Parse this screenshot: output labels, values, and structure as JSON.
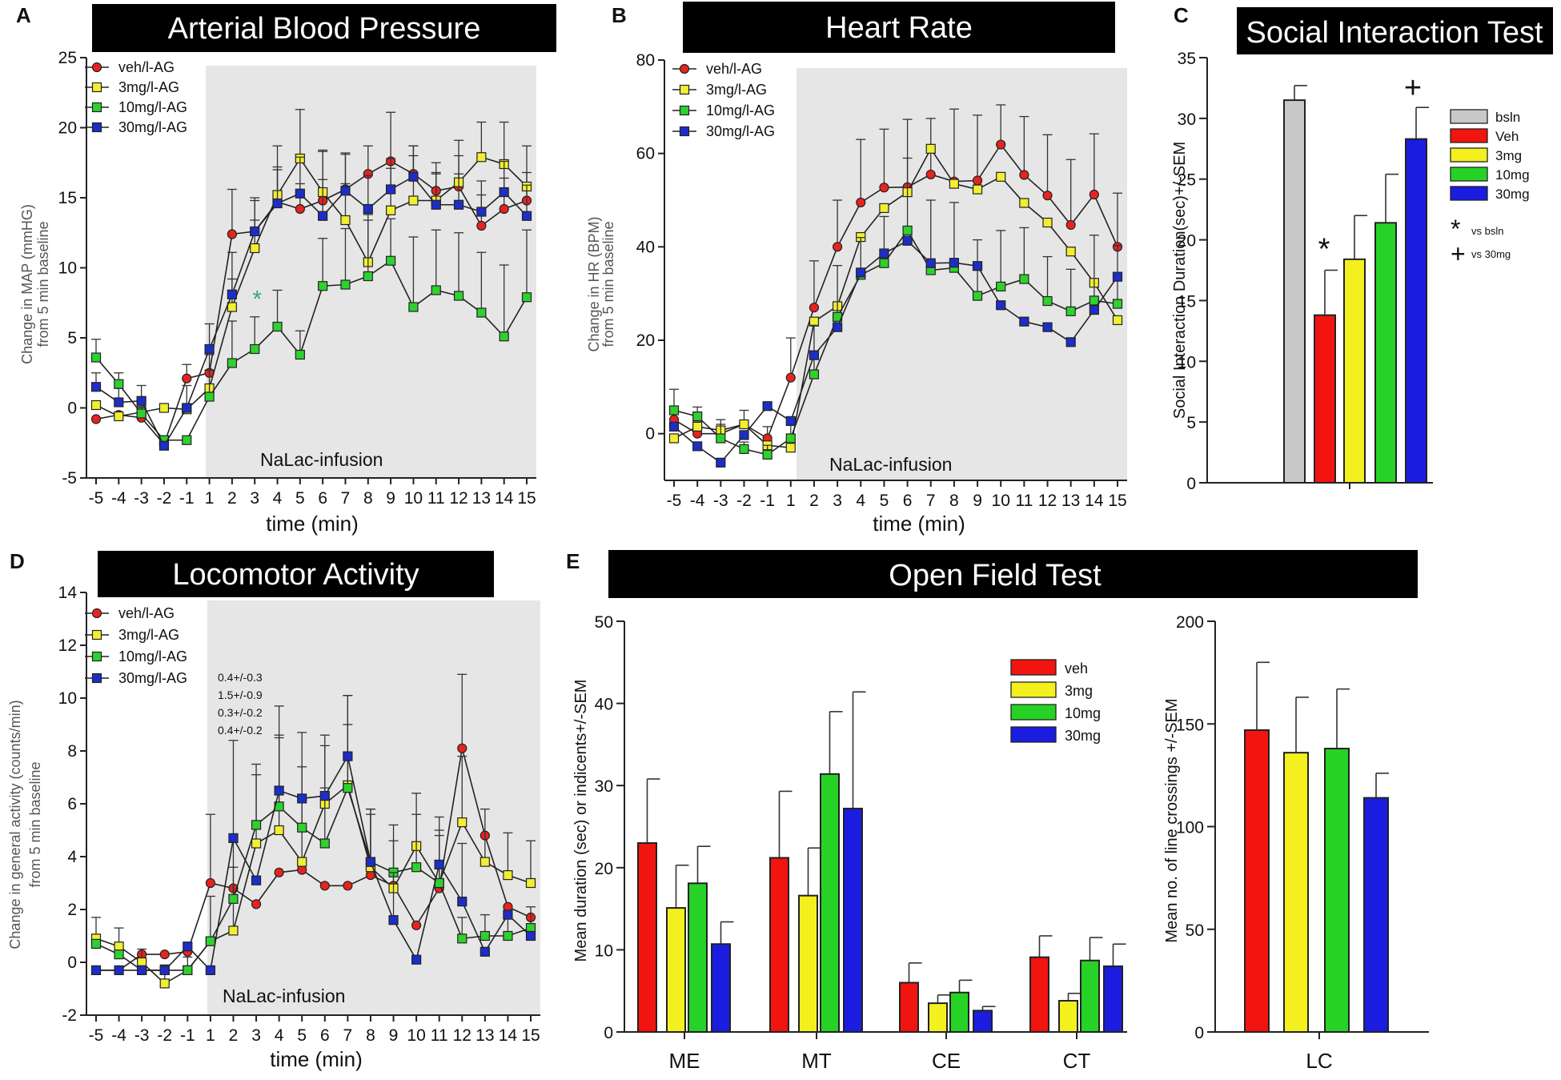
{
  "chart_data": [
    {
      "id": "A",
      "type": "line",
      "panel_label": "A",
      "title": "Arterial Blood Pressure",
      "xlabel": "time (min)",
      "ylabel": [
        "Change in MAP (mmHG)",
        "from 5 min baseline"
      ],
      "x": [
        "-5",
        "-4",
        "-3",
        "-2",
        "-1",
        "1",
        "2",
        "3",
        "4",
        "5",
        "6",
        "7",
        "8",
        "9",
        "10",
        "11",
        "12",
        "13",
        "14",
        "15"
      ],
      "ylim": [
        -5,
        25
      ],
      "yticks": [
        "-5",
        "0",
        "5",
        "10",
        "15",
        "20",
        "25"
      ],
      "shade_label": "NaLac-infusion",
      "annotation": "*",
      "legend": [
        "veh/l-AG",
        "3mg/l-AG",
        "10mg/l-AG",
        "30mg/l-AG"
      ],
      "series": [
        {
          "name": "veh/l-AG",
          "color": "#e8231f",
          "marker": "circle",
          "values": [
            -0.8,
            -0.5,
            -0.7,
            -2.6,
            2.1,
            2.5,
            12.4,
            12.6,
            14.7,
            14.2,
            14.8,
            15.6,
            16.7,
            17.6,
            16.7,
            15.5,
            15.8,
            13,
            14.2,
            14.8
          ],
          "errors": [
            0,
            0,
            0,
            0,
            1,
            1.3,
            3.2,
            2.2,
            2.3,
            1.8,
            3.5,
            2.6,
            2,
            3.5,
            2,
            2,
            2.2,
            2.2,
            2.2,
            2
          ]
        },
        {
          "name": "3mg/l-AG",
          "color": "#f2ee32",
          "marker": "square",
          "values": [
            0.2,
            -0.6,
            -0.3,
            0,
            -0.1,
            1.4,
            7.2,
            11.4,
            15.2,
            17.8,
            15.4,
            13.4,
            10.4,
            14.1,
            14.8,
            14.8,
            16.1,
            17.9,
            17.4,
            15.8
          ],
          "errors": [
            0,
            0,
            0,
            0,
            0,
            1.3,
            2,
            2,
            3.5,
            3.5,
            3,
            2.6,
            3,
            3,
            3.2,
            2,
            3,
            2.5,
            3,
            2.9
          ]
        },
        {
          "name": "10mg/l-AG",
          "color": "#2ed12e",
          "marker": "square",
          "values": [
            3.6,
            1.7,
            -0.4,
            -2.3,
            -2.3,
            0.8,
            3.2,
            4.2,
            5.8,
            3.8,
            8.7,
            8.8,
            9.4,
            10.5,
            7.2,
            8.4,
            8,
            6.8,
            5.1,
            7.9
          ],
          "errors": [
            1.3,
            0.8,
            0.5,
            0,
            0,
            1.9,
            3,
            2.3,
            2.6,
            1.7,
            3.4,
            4,
            4.4,
            3,
            5,
            4.3,
            4.5,
            4.3,
            5.1,
            4.8
          ]
        },
        {
          "name": "30mg/l-AG",
          "color": "#1d2ec6",
          "marker": "square",
          "values": [
            1.5,
            0.4,
            0.5,
            -2.7,
            0,
            4.2,
            8.1,
            12.6,
            14.6,
            15.3,
            13.7,
            15.5,
            14.2,
            15.6,
            16.5,
            14.5,
            14.5,
            14,
            15.4,
            13.7
          ],
          "errors": [
            1,
            1,
            1.1,
            0,
            1.6,
            1.8,
            3,
            2.4,
            2.6,
            2.6,
            2.6,
            2.6,
            2.4,
            2.2,
            2.2,
            2.2,
            2.2,
            2.2,
            2.2,
            2.2
          ]
        }
      ]
    },
    {
      "id": "B",
      "type": "line",
      "panel_label": "B",
      "title": "Heart Rate",
      "xlabel": "time (min)",
      "ylabel": [
        "Change in HR (BPM)",
        "from 5 min baseline"
      ],
      "x": [
        "-5",
        "-4",
        "-3",
        "-2",
        "-1",
        "1",
        "2",
        "3",
        "4",
        "5",
        "6",
        "7",
        "8",
        "9",
        "10",
        "11",
        "12",
        "13",
        "14",
        "15"
      ],
      "ylim": [
        -10,
        80
      ],
      "yticks": [
        "0",
        "20",
        "40",
        "60",
        "80"
      ],
      "shade_label": "NaLac-infusion",
      "legend": [
        "veh/l-AG",
        "3mg/l-AG",
        "10mg/l-AG",
        "30mg/l-AG"
      ],
      "series": [
        {
          "name": "veh/l-AG",
          "color": "#e8231f",
          "marker": "circle",
          "values": [
            3,
            0,
            0,
            2,
            -1,
            12,
            27,
            40,
            49.5,
            52.7,
            52.8,
            55.5,
            54,
            54.2,
            61.9,
            55.4,
            51,
            44.7,
            51.2,
            40
          ],
          "errors": [
            2.5,
            2.5,
            3,
            3,
            2.5,
            8.5,
            10,
            10,
            13.5,
            12.5,
            14.5,
            12,
            15.5,
            14,
            8.5,
            12.5,
            13,
            14,
            13,
            11.5
          ]
        },
        {
          "name": "3mg/l-AG",
          "color": "#f2ee32",
          "marker": "square",
          "values": [
            -1,
            1.5,
            0.7,
            2,
            -2.5,
            -3,
            24,
            27.3,
            42.1,
            48.3,
            51.7,
            61,
            53.5,
            52.3,
            55,
            49.4,
            45.2,
            39,
            32.3,
            24.3
          ]
        },
        {
          "name": "10mg/l-AG",
          "color": "#2ed12e",
          "marker": "square",
          "values": [
            5,
            3.7,
            -1,
            -3.3,
            -4.5,
            -1,
            12.7,
            25,
            34,
            36.5,
            43.5,
            35,
            35.5,
            29.5,
            31.5,
            33.1,
            28.4,
            26.2,
            28.5,
            27.8
          ],
          "errors": [
            4.5,
            2,
            3,
            1.5,
            2,
            3,
            10.5,
            11,
            8,
            10,
            15.5,
            15,
            14,
            12,
            12,
            11,
            9.5,
            9,
            14,
            12.5
          ]
        },
        {
          "name": "30mg/l-AG",
          "color": "#1d2ec6",
          "marker": "square",
          "values": [
            1.5,
            -2.7,
            -6.2,
            -0.3,
            5.9,
            2.7,
            16.8,
            22.8,
            34.5,
            38.6,
            41.3,
            36.5,
            36.6,
            35.9,
            27.5,
            24,
            22.8,
            19.6,
            26.5,
            33.6
          ]
        }
      ]
    },
    {
      "id": "C",
      "type": "bar",
      "panel_label": "C",
      "title": "Social Interaction Test",
      "ylabel": "Social Interaction Duration(sec)+/-SEM",
      "categories": [
        "bsln",
        "Veh",
        "3mg",
        "10mg",
        "30mg"
      ],
      "values": [
        31.5,
        13.8,
        18.4,
        21.4,
        28.3
      ],
      "errors": [
        1.2,
        3.7,
        3.6,
        4,
        2.6
      ],
      "colors": [
        "#c8c8c8",
        "#f2140f",
        "#f4f01e",
        "#27d227",
        "#1a1de0"
      ],
      "ylim": [
        0,
        35
      ],
      "yticks": [
        "0",
        "5",
        "10",
        "15",
        "20",
        "25",
        "30",
        "35"
      ],
      "markers": [
        {
          "category": "Veh",
          "symbol": "*"
        },
        {
          "category": "30mg",
          "symbol": "+"
        }
      ],
      "legend_notes": [
        {
          "symbol": "*",
          "text": "vs bsln"
        },
        {
          "symbol": "+",
          "text": "vs 30mg"
        }
      ]
    },
    {
      "id": "D",
      "type": "line",
      "panel_label": "D",
      "title": "Locomotor Activity",
      "xlabel": "time (min)",
      "ylabel": [
        "Change in general activity (counts/min)",
        "from 5 min baseline"
      ],
      "x": [
        "-5",
        "-4",
        "-3",
        "-2",
        "-1",
        "1",
        "2",
        "3",
        "4",
        "5",
        "6",
        "7",
        "8",
        "9",
        "10",
        "11",
        "12",
        "13",
        "14",
        "15"
      ],
      "ylim": [
        -2,
        14
      ],
      "yticks": [
        "-2",
        "0",
        "2",
        "4",
        "6",
        "8",
        "10",
        "12",
        "14"
      ],
      "shade_label": "NaLac-infusion",
      "legend": [
        "veh/l-AG",
        "3mg/l-AG",
        "10mg/l-AG",
        "30mg/l-AG"
      ],
      "baseline_notes": [
        "0.4+/-0.3",
        "1.5+/-0.9",
        "0.3+/-0.2",
        "0.4+/-0.2"
      ],
      "series": [
        {
          "name": "veh/l-AG",
          "color": "#e8231f",
          "marker": "circle",
          "values": [
            -0.3,
            -0.3,
            0.3,
            0.3,
            0.4,
            3,
            2.8,
            2.2,
            3.4,
            3.5,
            2.9,
            2.9,
            3.3,
            2.9,
            1.4,
            2.8,
            8.1,
            4.8,
            2.1,
            1.7
          ],
          "errors": [
            0,
            0,
            0,
            0,
            0,
            2.6,
            0,
            0,
            0,
            0,
            0,
            0,
            0,
            0,
            0,
            0,
            2.8,
            0,
            0,
            0
          ]
        },
        {
          "name": "3mg/l-AG",
          "color": "#f2ee32",
          "marker": "square",
          "values": [
            0.9,
            0.6,
            0,
            -0.8,
            -0.3,
            0.8,
            1.2,
            4.5,
            5,
            3.8,
            6,
            6.7,
            3.6,
            2.8,
            4.4,
            3,
            5.3,
            3.8,
            3.3,
            3
          ],
          "errors": [
            0.8,
            0.7,
            0.5,
            0.7,
            0.5,
            1.7,
            2.4,
            2.6,
            3.6,
            2.4,
            2.2,
            3.4,
            2,
            1.8,
            2,
            2,
            2.5,
            2,
            1.6,
            1.6
          ]
        },
        {
          "name": "10mg/l-AG",
          "color": "#2ed12e",
          "marker": "square",
          "values": [
            0.7,
            0.3,
            -0.3,
            -0.3,
            -0.3,
            0.8,
            2.4,
            5.2,
            5.9,
            5.1,
            4.5,
            6.6,
            3.8,
            3.4,
            3.6,
            3,
            0.9,
            1,
            1,
            1.3
          ],
          "errors": [
            0,
            0,
            0,
            0,
            0,
            0,
            2.2,
            2.3,
            2.6,
            2.3,
            2.1,
            2.4,
            2,
            1.8,
            2,
            1.8,
            0.8,
            0.8,
            0.8,
            0.8
          ]
        },
        {
          "name": "30mg/l-AG",
          "color": "#1d2ec6",
          "marker": "square",
          "values": [
            -0.3,
            -0.3,
            -0.3,
            -0.3,
            0.6,
            -0.3,
            4.7,
            3.1,
            6.5,
            6.2,
            6.3,
            7.8,
            3.8,
            1.6,
            0.1,
            3.7,
            2.3,
            0.4,
            1.8,
            1
          ],
          "errors": [
            0,
            0,
            0,
            0,
            0,
            0,
            3.7,
            0,
            3.2,
            2.5,
            2.3,
            2.3,
            2,
            1.8,
            0,
            1.8,
            2.2,
            0,
            0,
            0
          ]
        }
      ]
    },
    {
      "id": "E1",
      "type": "bar",
      "panel_label": "E",
      "title": "Open Field Test",
      "ylabel": "Mean duration (sec) or indicents+/-SEM",
      "categories": [
        "ME",
        "MT",
        "CE",
        "CT"
      ],
      "ylim": [
        0,
        50
      ],
      "yticks": [
        "0",
        "10",
        "20",
        "30",
        "40",
        "50"
      ],
      "legend": [
        "veh",
        "3mg",
        "10mg",
        "30mg"
      ],
      "series": [
        {
          "name": "veh",
          "color": "#f2140f",
          "values": [
            23,
            21.2,
            6,
            9.1
          ],
          "errors": [
            7.8,
            8.1,
            2.4,
            2.6
          ]
        },
        {
          "name": "3mg",
          "color": "#f4f01e",
          "values": [
            15.1,
            16.6,
            3.5,
            3.8
          ],
          "errors": [
            5.2,
            5.8,
            1,
            0.9
          ]
        },
        {
          "name": "10mg",
          "color": "#27d227",
          "values": [
            18.1,
            31.4,
            4.8,
            8.7
          ],
          "errors": [
            4.5,
            7.6,
            1.5,
            2.8
          ]
        },
        {
          "name": "30mg",
          "color": "#1a1de0",
          "values": [
            10.7,
            27.2,
            2.6,
            8
          ],
          "errors": [
            2.7,
            14.2,
            0.5,
            2.7
          ]
        }
      ]
    },
    {
      "id": "E2",
      "type": "bar",
      "ylabel": "Mean no. of line crossings +/-SEM",
      "categories": [
        "LC"
      ],
      "ylim": [
        0,
        200
      ],
      "yticks": [
        "0",
        "50",
        "100",
        "150",
        "200"
      ],
      "series": [
        {
          "name": "veh",
          "color": "#f2140f",
          "values": [
            147
          ],
          "errors": [
            33
          ]
        },
        {
          "name": "3mg",
          "color": "#f4f01e",
          "values": [
            136
          ],
          "errors": [
            27
          ]
        },
        {
          "name": "10mg",
          "color": "#27d227",
          "values": [
            138
          ],
          "errors": [
            29
          ]
        },
        {
          "name": "30mg",
          "color": "#1a1de0",
          "values": [
            114
          ],
          "errors": [
            12
          ]
        }
      ]
    }
  ]
}
